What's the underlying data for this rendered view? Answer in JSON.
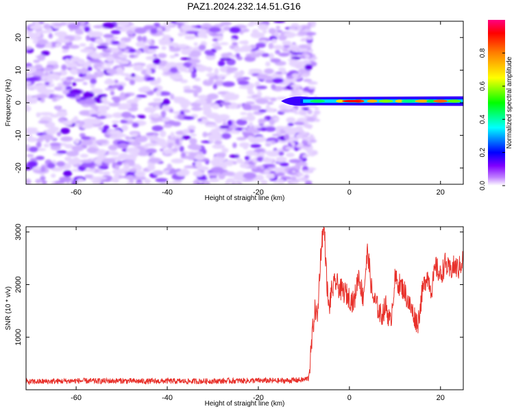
{
  "chart_data": [
    {
      "type": "heatmap",
      "title": "PAZ1.2024.232.14.51.G16",
      "xlabel": "Height of straight line (km)",
      "ylabel": "Frequency (Hz)",
      "xlim": [
        -71,
        25
      ],
      "ylim": [
        -25,
        25
      ],
      "xticks": [
        -60,
        -40,
        -20,
        0,
        20
      ],
      "yticks": [
        -20,
        -10,
        0,
        10,
        20
      ],
      "colorbar": {
        "label": "Normalized spectral amplitude",
        "range": [
          0,
          1
        ],
        "ticks": [
          "0.0",
          "0.2",
          "0.4",
          "0.6",
          "0.8"
        ],
        "colors": [
          "#ffffff",
          "#8a00ff",
          "#0000ff",
          "#00ffff",
          "#00ff00",
          "#ffff00",
          "#ff8000",
          "#ff0000",
          "#ff0080"
        ]
      },
      "features": {
        "noise_region_km": [
          -71,
          -10
        ],
        "noise_amplitude_range": [
          0.05,
          0.25
        ],
        "signal_start_km": -15,
        "signal_center_hz": 0.5,
        "signal_peak_amplitude": 0.95
      },
      "grid": false
    },
    {
      "type": "line",
      "xlabel": "Height of straight line (km)",
      "ylabel": "SNR (10 * v/v)",
      "xlim": [
        -71,
        25
      ],
      "ylim": [
        0,
        3100
      ],
      "xticks": [
        -60,
        -40,
        -20,
        0,
        20
      ],
      "yticks": [
        1000,
        2000,
        3000
      ],
      "line_color": "#e8302a",
      "series": [
        {
          "x": [
            -71,
            -65,
            -60,
            -55,
            -50,
            -45,
            -40,
            -35,
            -30,
            -25,
            -20,
            -15,
            -12,
            -10,
            -9,
            -8.5,
            -8,
            -7.5,
            -7,
            -6.5,
            -6,
            -5.5,
            -5,
            -4.5,
            -4,
            -3,
            -2,
            -1,
            0,
            1,
            2,
            3,
            4,
            5,
            6,
            7,
            8,
            9,
            10,
            11,
            12,
            13,
            14,
            15,
            16,
            17,
            18,
            19,
            20,
            21,
            22,
            23,
            24,
            25
          ],
          "y": [
            150,
            160,
            170,
            165,
            170,
            160,
            165,
            160,
            165,
            170,
            175,
            170,
            180,
            190,
            220,
            650,
            1200,
            1550,
            1350,
            2300,
            2900,
            3050,
            2100,
            1500,
            1850,
            2050,
            1900,
            1850,
            1750,
            1650,
            2200,
            1750,
            2650,
            1800,
            1600,
            1400,
            1600,
            1250,
            2100,
            2000,
            1900,
            1650,
            1450,
            1250,
            1850,
            2200,
            1900,
            2350,
            2150,
            2400,
            2250,
            2350,
            2300,
            2500
          ]
        }
      ],
      "grid": false
    }
  ]
}
